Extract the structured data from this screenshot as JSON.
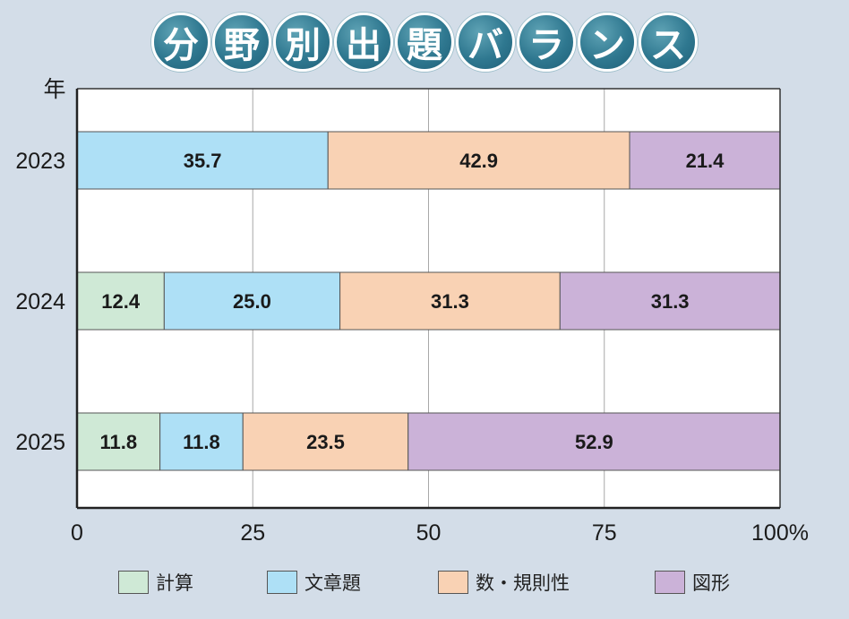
{
  "title_chars": [
    "分",
    "野",
    "別",
    "出",
    "題",
    "バ",
    "ラ",
    "ン",
    "ス"
  ],
  "chart_data": {
    "type": "bar",
    "orientation": "horizontal",
    "stacked": true,
    "title": "分野別出題バランス",
    "ylabel": "年",
    "categories": [
      "2023",
      "2024",
      "2025"
    ],
    "series": [
      {
        "name": "計算",
        "color": "#cfe9d6",
        "values": [
          0,
          12.4,
          11.8
        ],
        "labels": [
          "",
          "12.4",
          "11.8"
        ]
      },
      {
        "name": "文章題",
        "color": "#aee0f6",
        "values": [
          35.7,
          25.0,
          11.8
        ],
        "labels": [
          "35.7",
          "25.0",
          "11.8"
        ]
      },
      {
        "name": "数・規則性",
        "color": "#f9d2b4",
        "values": [
          42.9,
          31.3,
          23.5
        ],
        "labels": [
          "42.9",
          "31.3",
          "23.5"
        ]
      },
      {
        "name": "図形",
        "color": "#cbb2d8",
        "values": [
          21.4,
          31.3,
          52.9
        ],
        "labels": [
          "21.4",
          "31.3",
          "52.9"
        ]
      }
    ],
    "xlim": [
      0,
      100
    ],
    "xticks": [
      0,
      25,
      50,
      75,
      100
    ],
    "xtick_labels": [
      "0",
      "25",
      "50",
      "75",
      "100%"
    ],
    "grid": true,
    "legend_position": "bottom"
  }
}
